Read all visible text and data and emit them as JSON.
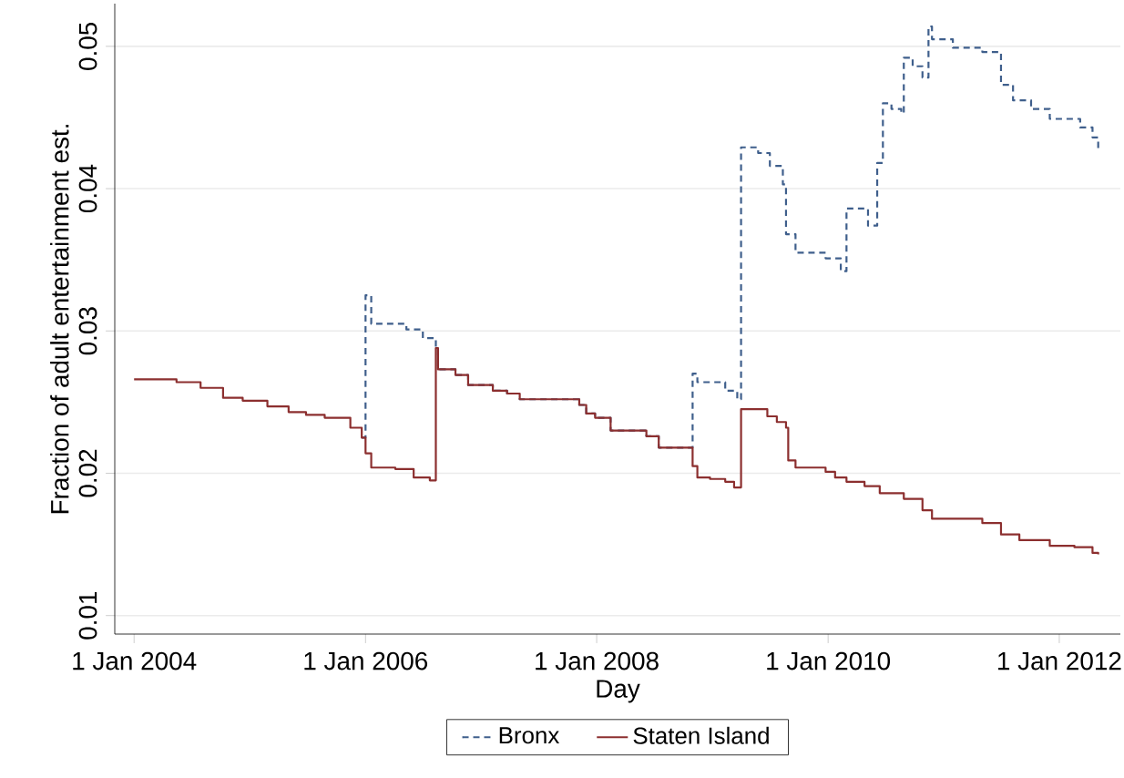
{
  "chart_data": {
    "type": "step",
    "xlabel": "Day",
    "ylabel": "Fraction of adult entertainment est.",
    "xlim": [
      "2003-11-01",
      "2012-07-12"
    ],
    "ylim": [
      0.0087,
      0.053
    ],
    "xticks": [
      {
        "value": "2004-01-01",
        "label": "1 Jan 2004"
      },
      {
        "value": "2006-01-01",
        "label": "1 Jan 2006"
      },
      {
        "value": "2008-01-01",
        "label": "1 Jan 2008"
      },
      {
        "value": "2010-01-01",
        "label": "1 Jan 2010"
      },
      {
        "value": "2012-01-01",
        "label": "1 Jan 2012"
      }
    ],
    "yticks": [
      0.01,
      0.02,
      0.03,
      0.04,
      0.05
    ],
    "grid": "y",
    "legend": "bottom",
    "marker": "none",
    "series": [
      {
        "name": "Bronx",
        "color": "#3f5f8c",
        "line_style": "dashed",
        "x": [
          "2005-12-20",
          "2006-01-01",
          "2006-01-19",
          "2006-05-10",
          "2006-07-01",
          "2006-08-11",
          "2006-08-18",
          "2006-10-12",
          "2006-11-21",
          "2007-02-07",
          "2007-03-24",
          "2007-05-03",
          "2007-11-07",
          "2007-11-29",
          "2007-12-27",
          "2008-02-14",
          "2008-06-06",
          "2008-07-15",
          "2008-10-30",
          "2008-11-14",
          "2009-02-10",
          "2009-03-20",
          "2009-04-01",
          "2009-05-25",
          "2009-07-01",
          "2009-08-11",
          "2009-08-21",
          "2009-09-20",
          "2009-12-24",
          "2010-02-10",
          "2010-02-28",
          "2010-05-07",
          "2010-06-05",
          "2010-06-23",
          "2010-07-20",
          "2010-08-20",
          "2010-08-28",
          "2010-09-25",
          "2010-10-26",
          "2010-11-14",
          "2010-11-25",
          "2011-01-30",
          "2011-05-03",
          "2011-07-01",
          "2011-08-08",
          "2011-10-04",
          "2011-12-02",
          "2012-03-07",
          "2012-04-15",
          "2012-05-03"
        ],
        "values": [
          0.0225,
          0.0325,
          0.0305,
          0.0301,
          0.0295,
          0.0288,
          0.0273,
          0.0269,
          0.0262,
          0.0258,
          0.0256,
          0.0252,
          0.0248,
          0.0242,
          0.0239,
          0.023,
          0.0226,
          0.0218,
          0.027,
          0.0264,
          0.0258,
          0.0252,
          0.0429,
          0.0425,
          0.0416,
          0.0403,
          0.0368,
          0.0355,
          0.0351,
          0.0342,
          0.0386,
          0.0374,
          0.0418,
          0.046,
          0.0456,
          0.0453,
          0.0492,
          0.0486,
          0.0478,
          0.0514,
          0.0505,
          0.0499,
          0.0496,
          0.0473,
          0.0462,
          0.0456,
          0.0449,
          0.0443,
          0.0436,
          0.0427
        ]
      },
      {
        "name": "Staten Island",
        "color": "#8c2f2f",
        "line_style": "solid",
        "x": [
          "2004-01-01",
          "2004-05-14",
          "2004-07-29",
          "2004-10-08",
          "2004-12-09",
          "2005-02-25",
          "2005-05-03",
          "2005-06-27",
          "2005-08-25",
          "2005-11-14",
          "2005-12-20",
          "2006-01-01",
          "2006-01-19",
          "2006-04-05",
          "2006-06-02",
          "2006-07-23",
          "2006-08-11",
          "2006-08-18",
          "2006-10-12",
          "2006-11-21",
          "2007-02-07",
          "2007-03-24",
          "2007-05-03",
          "2007-11-07",
          "2007-11-29",
          "2007-12-27",
          "2008-02-14",
          "2008-06-06",
          "2008-07-15",
          "2008-10-30",
          "2008-11-14",
          "2008-12-24",
          "2009-02-10",
          "2009-03-10",
          "2009-04-01",
          "2009-06-23",
          "2009-07-23",
          "2009-08-21",
          "2009-08-28",
          "2009-09-20",
          "2009-12-24",
          "2010-01-23",
          "2010-02-28",
          "2010-04-26",
          "2010-06-13",
          "2010-08-28",
          "2010-10-26",
          "2010-11-25",
          "2011-05-03",
          "2011-07-01",
          "2011-08-28",
          "2011-12-02",
          "2012-02-18",
          "2012-04-15",
          "2012-05-03"
        ],
        "values": [
          0.0266,
          0.0264,
          0.026,
          0.0253,
          0.0251,
          0.0247,
          0.0243,
          0.0241,
          0.0239,
          0.0232,
          0.0225,
          0.0214,
          0.0204,
          0.0203,
          0.0197,
          0.0195,
          0.0288,
          0.0273,
          0.0269,
          0.0262,
          0.0258,
          0.0256,
          0.0252,
          0.0248,
          0.0242,
          0.0239,
          0.023,
          0.0226,
          0.0218,
          0.0205,
          0.0197,
          0.0196,
          0.0194,
          0.019,
          0.0245,
          0.024,
          0.0236,
          0.0232,
          0.0209,
          0.0204,
          0.0201,
          0.0197,
          0.0194,
          0.0191,
          0.0186,
          0.0182,
          0.0174,
          0.0168,
          0.0165,
          0.0157,
          0.0153,
          0.0149,
          0.0148,
          0.0144,
          0.0143
        ]
      }
    ]
  }
}
